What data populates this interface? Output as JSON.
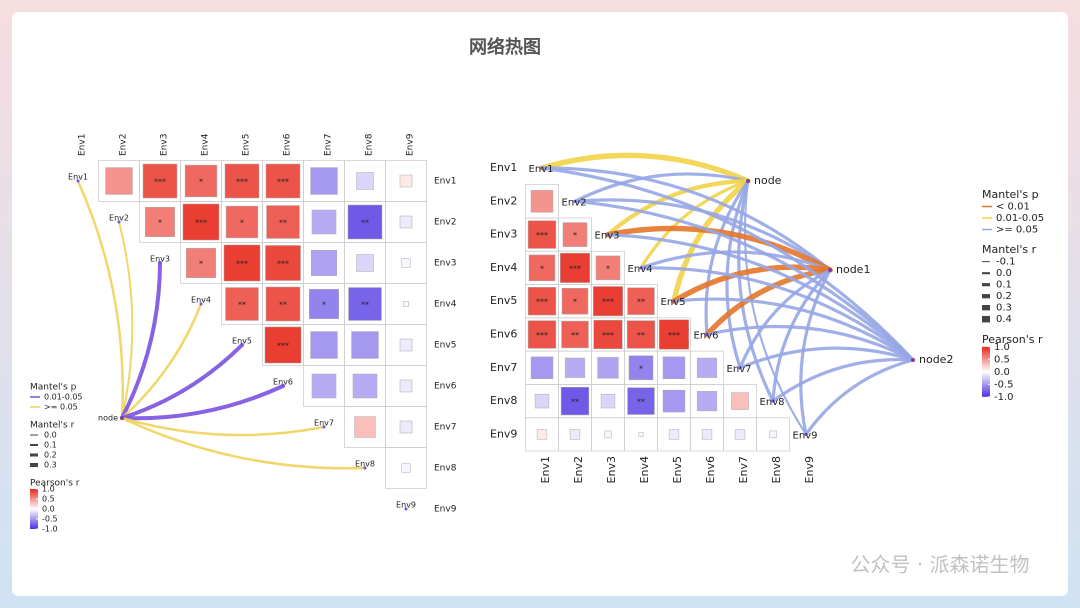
{
  "title": "网络热图",
  "watermark": "公众号 · 派森诺生物",
  "chart_data": [
    {
      "type": "correlogram",
      "labels": [
        "Env1",
        "Env2",
        "Env3",
        "Env4",
        "Env5",
        "Env6",
        "Env7",
        "Env8",
        "Env9"
      ],
      "r": [
        [
          null,
          0.5,
          0.8,
          0.7,
          0.8,
          0.8,
          -0.5,
          -0.2,
          0.1
        ],
        [
          null,
          null,
          0.6,
          0.9,
          0.7,
          0.75,
          -0.4,
          -0.8,
          -0.1
        ],
        [
          null,
          null,
          null,
          0.6,
          0.9,
          0.85,
          -0.45,
          -0.2,
          -0.05
        ],
        [
          null,
          null,
          null,
          null,
          0.75,
          0.8,
          -0.6,
          -0.75,
          0.02
        ],
        [
          null,
          null,
          null,
          null,
          null,
          0.9,
          -0.5,
          -0.5,
          -0.1
        ],
        [
          null,
          null,
          null,
          null,
          null,
          null,
          -0.4,
          -0.4,
          -0.1
        ],
        [
          null,
          null,
          null,
          null,
          null,
          null,
          null,
          0.3,
          -0.1
        ],
        [
          null,
          null,
          null,
          null,
          null,
          null,
          null,
          null,
          -0.05
        ],
        [
          null,
          null,
          null,
          null,
          null,
          null,
          null,
          null,
          null
        ]
      ],
      "signif": [
        [
          null,
          null,
          "***",
          "*",
          "***",
          "***",
          null,
          null,
          null
        ],
        [
          null,
          null,
          "*",
          "***",
          "*",
          "**",
          null,
          "**",
          null
        ],
        [
          null,
          null,
          null,
          "*",
          "***",
          "***",
          null,
          null,
          null
        ],
        [
          null,
          null,
          null,
          null,
          "**",
          "**",
          "*",
          "**",
          null
        ],
        [
          null,
          null,
          null,
          null,
          null,
          "***",
          null,
          null,
          null
        ],
        [
          null,
          null,
          null,
          null,
          null,
          null,
          null,
          null,
          null
        ],
        [
          null,
          null,
          null,
          null,
          null,
          null,
          null,
          null,
          null
        ],
        [
          null,
          null,
          null,
          null,
          null,
          null,
          null,
          null,
          null
        ],
        [
          null,
          null,
          null,
          null,
          null,
          null,
          null,
          null,
          null
        ]
      ],
      "nodes": [
        "node"
      ],
      "links": [
        {
          "node": 0,
          "env": 0,
          "r": 0.15,
          "color": "#efd35a"
        },
        {
          "node": 0,
          "env": 1,
          "r": 0.1,
          "color": "#efd35a"
        },
        {
          "node": 0,
          "env": 2,
          "r": 0.3,
          "color": "#7a52e0"
        },
        {
          "node": 0,
          "env": 3,
          "r": 0.15,
          "color": "#efd35a"
        },
        {
          "node": 0,
          "env": 4,
          "r": 0.3,
          "color": "#7a52e0"
        },
        {
          "node": 0,
          "env": 5,
          "r": 0.3,
          "color": "#7a52e0"
        },
        {
          "node": 0,
          "env": 6,
          "r": 0.15,
          "color": "#efd35a"
        },
        {
          "node": 0,
          "env": 7,
          "r": 0.15,
          "color": "#efd35a"
        }
      ],
      "mantel_p": {
        "title": "Mantel's p",
        "items": [
          {
            "label": "0.01-0.05",
            "color": "#7a52e0"
          },
          {
            "label": ">= 0.05",
            "color": "#efd35a"
          }
        ]
      },
      "mantel_r": {
        "title": "Mantel's r",
        "ticks": [
          {
            "value": 0,
            "label": "0.0"
          },
          0.1,
          0.2,
          0.3
        ]
      },
      "pearson_r": {
        "title": "Pearson's r",
        "clim": [
          -1,
          1
        ],
        "ticks": [
          {
            "value": 1,
            "label": "1.0"
          },
          0.5,
          {
            "value": 0,
            "label": "0.0"
          },
          -0.5,
          {
            "value": -1,
            "label": "-1.0"
          }
        ]
      }
    },
    {
      "type": "correlogram",
      "labels": [
        "Env1",
        "Env2",
        "Env3",
        "Env4",
        "Env5",
        "Env6",
        "Env7",
        "Env8",
        "Env9"
      ],
      "r": [
        [
          null,
          null,
          null,
          null,
          null,
          null,
          null,
          null,
          null
        ],
        [
          0.5,
          null,
          null,
          null,
          null,
          null,
          null,
          null,
          null
        ],
        [
          0.8,
          0.6,
          null,
          null,
          null,
          null,
          null,
          null,
          null
        ],
        [
          0.7,
          0.9,
          0.6,
          null,
          null,
          null,
          null,
          null,
          null
        ],
        [
          0.8,
          0.7,
          0.9,
          0.75,
          null,
          null,
          null,
          null,
          null
        ],
        [
          0.8,
          0.75,
          0.85,
          0.8,
          0.9,
          null,
          null,
          null,
          null
        ],
        [
          -0.5,
          -0.4,
          -0.45,
          -0.6,
          -0.5,
          -0.4,
          null,
          null,
          null
        ],
        [
          -0.2,
          -0.8,
          -0.2,
          -0.75,
          -0.5,
          -0.4,
          0.3,
          null,
          null
        ],
        [
          0.1,
          -0.1,
          -0.05,
          0.02,
          -0.1,
          -0.1,
          -0.1,
          -0.05,
          null
        ]
      ],
      "signif": [
        [
          null,
          null,
          null,
          null,
          null,
          null,
          null,
          null,
          null
        ],
        [
          null,
          null,
          null,
          null,
          null,
          null,
          null,
          null,
          null
        ],
        [
          "***",
          "*",
          null,
          null,
          null,
          null,
          null,
          null,
          null
        ],
        [
          "*",
          "***",
          "*",
          null,
          null,
          null,
          null,
          null,
          null
        ],
        [
          "***",
          "*",
          "***",
          "**",
          null,
          null,
          null,
          null,
          null
        ],
        [
          "***",
          "**",
          "***",
          "**",
          "***",
          null,
          null,
          null,
          null
        ],
        [
          null,
          null,
          null,
          "*",
          null,
          null,
          null,
          null,
          null
        ],
        [
          null,
          "**",
          null,
          "**",
          null,
          null,
          null,
          null,
          null
        ],
        [
          null,
          null,
          null,
          null,
          null,
          null,
          null,
          null,
          null
        ]
      ],
      "nodes": [
        "node",
        "node1",
        "node2"
      ],
      "links": [
        {
          "node": 0,
          "env": 0,
          "r": 0.3,
          "color": "#f2d348"
        },
        {
          "node": 0,
          "env": 1,
          "r": 0.1,
          "color": "#96a6e6"
        },
        {
          "node": 0,
          "env": 2,
          "r": 0.2,
          "color": "#f2d348"
        },
        {
          "node": 0,
          "env": 3,
          "r": 0.1,
          "color": "#f2d348"
        },
        {
          "node": 0,
          "env": 4,
          "r": 0.3,
          "color": "#f2d348"
        },
        {
          "node": 0,
          "env": 5,
          "r": 0.1,
          "color": "#96a6e6"
        },
        {
          "node": 0,
          "env": 6,
          "r": 0.1,
          "color": "#96a6e6"
        },
        {
          "node": 0,
          "env": 7,
          "r": 0.1,
          "color": "#96a6e6"
        },
        {
          "node": 0,
          "env": 8,
          "r": 0.0,
          "color": "#96a6e6"
        },
        {
          "node": 1,
          "env": 0,
          "r": 0.1,
          "color": "#96a6e6"
        },
        {
          "node": 1,
          "env": 1,
          "r": 0.1,
          "color": "#96a6e6"
        },
        {
          "node": 1,
          "env": 2,
          "r": 0.3,
          "color": "#e2762a"
        },
        {
          "node": 1,
          "env": 3,
          "r": 0.1,
          "color": "#96a6e6"
        },
        {
          "node": 1,
          "env": 4,
          "r": 0.3,
          "color": "#e2762a"
        },
        {
          "node": 1,
          "env": 5,
          "r": 0.3,
          "color": "#e2762a"
        },
        {
          "node": 1,
          "env": 6,
          "r": 0.1,
          "color": "#96a6e6"
        },
        {
          "node": 1,
          "env": 7,
          "r": 0.1,
          "color": "#96a6e6"
        },
        {
          "node": 1,
          "env": 8,
          "r": 0.1,
          "color": "#96a6e6"
        },
        {
          "node": 2,
          "env": 0,
          "r": 0.1,
          "color": "#96a6e6"
        },
        {
          "node": 2,
          "env": 1,
          "r": 0.1,
          "color": "#96a6e6"
        },
        {
          "node": 2,
          "env": 2,
          "r": 0.1,
          "color": "#96a6e6"
        },
        {
          "node": 2,
          "env": 3,
          "r": 0.1,
          "color": "#96a6e6"
        },
        {
          "node": 2,
          "env": 4,
          "r": 0.1,
          "color": "#96a6e6"
        },
        {
          "node": 2,
          "env": 5,
          "r": 0.1,
          "color": "#96a6e6"
        },
        {
          "node": 2,
          "env": 6,
          "r": 0.1,
          "color": "#96a6e6"
        },
        {
          "node": 2,
          "env": 7,
          "r": 0.1,
          "color": "#96a6e6"
        },
        {
          "node": 2,
          "env": 8,
          "r": 0.1,
          "color": "#96a6e6"
        }
      ],
      "mantel_p": {
        "title": "Mantel's p",
        "items": [
          {
            "label": "< 0.01",
            "color": "#e2762a"
          },
          {
            "label": "0.01-0.05",
            "color": "#f2d348"
          },
          {
            "label": ">= 0.05",
            "color": "#96a6e6"
          }
        ]
      },
      "mantel_r": {
        "title": "Mantel's r",
        "ticks": [
          -0.1,
          {
            "value": 0,
            "label": "0.0"
          },
          0.1,
          0.2,
          0.3,
          0.4
        ]
      },
      "pearson_r": {
        "title": "Pearson's r",
        "clim": [
          -1,
          1
        ],
        "ticks": [
          {
            "value": 1,
            "label": "1.0"
          },
          0.5,
          {
            "value": 0,
            "label": "0.0"
          },
          -0.5,
          {
            "value": -1,
            "label": "-1.0"
          }
        ]
      }
    }
  ]
}
